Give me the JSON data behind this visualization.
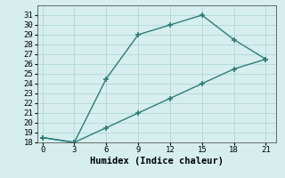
{
  "xlabel": "Humidex (Indice chaleur)",
  "x": [
    0,
    3,
    6,
    9,
    12,
    15,
    18,
    21
  ],
  "line1_y": [
    18.5,
    18.0,
    24.5,
    29.0,
    30.0,
    31.0,
    28.5,
    26.5
  ],
  "line2_y": [
    18.5,
    18.0,
    19.5,
    21.0,
    22.5,
    24.0,
    25.5,
    26.5
  ],
  "line_color": "#2d7d78",
  "bg_color": "#d6eeee",
  "grid_color": "#b0d8d8",
  "ylim": [
    18,
    32
  ],
  "xlim": [
    -0.5,
    22
  ],
  "xticks": [
    0,
    3,
    6,
    9,
    12,
    15,
    18,
    21
  ],
  "yticks": [
    18,
    19,
    20,
    21,
    22,
    23,
    24,
    25,
    26,
    27,
    28,
    29,
    30,
    31
  ],
  "marker": "+",
  "marker_size": 5,
  "marker_edge_width": 1.2,
  "line_width": 1.0,
  "xlabel_fontsize": 7.5,
  "tick_fontsize": 6.5,
  "font_family": "monospace"
}
